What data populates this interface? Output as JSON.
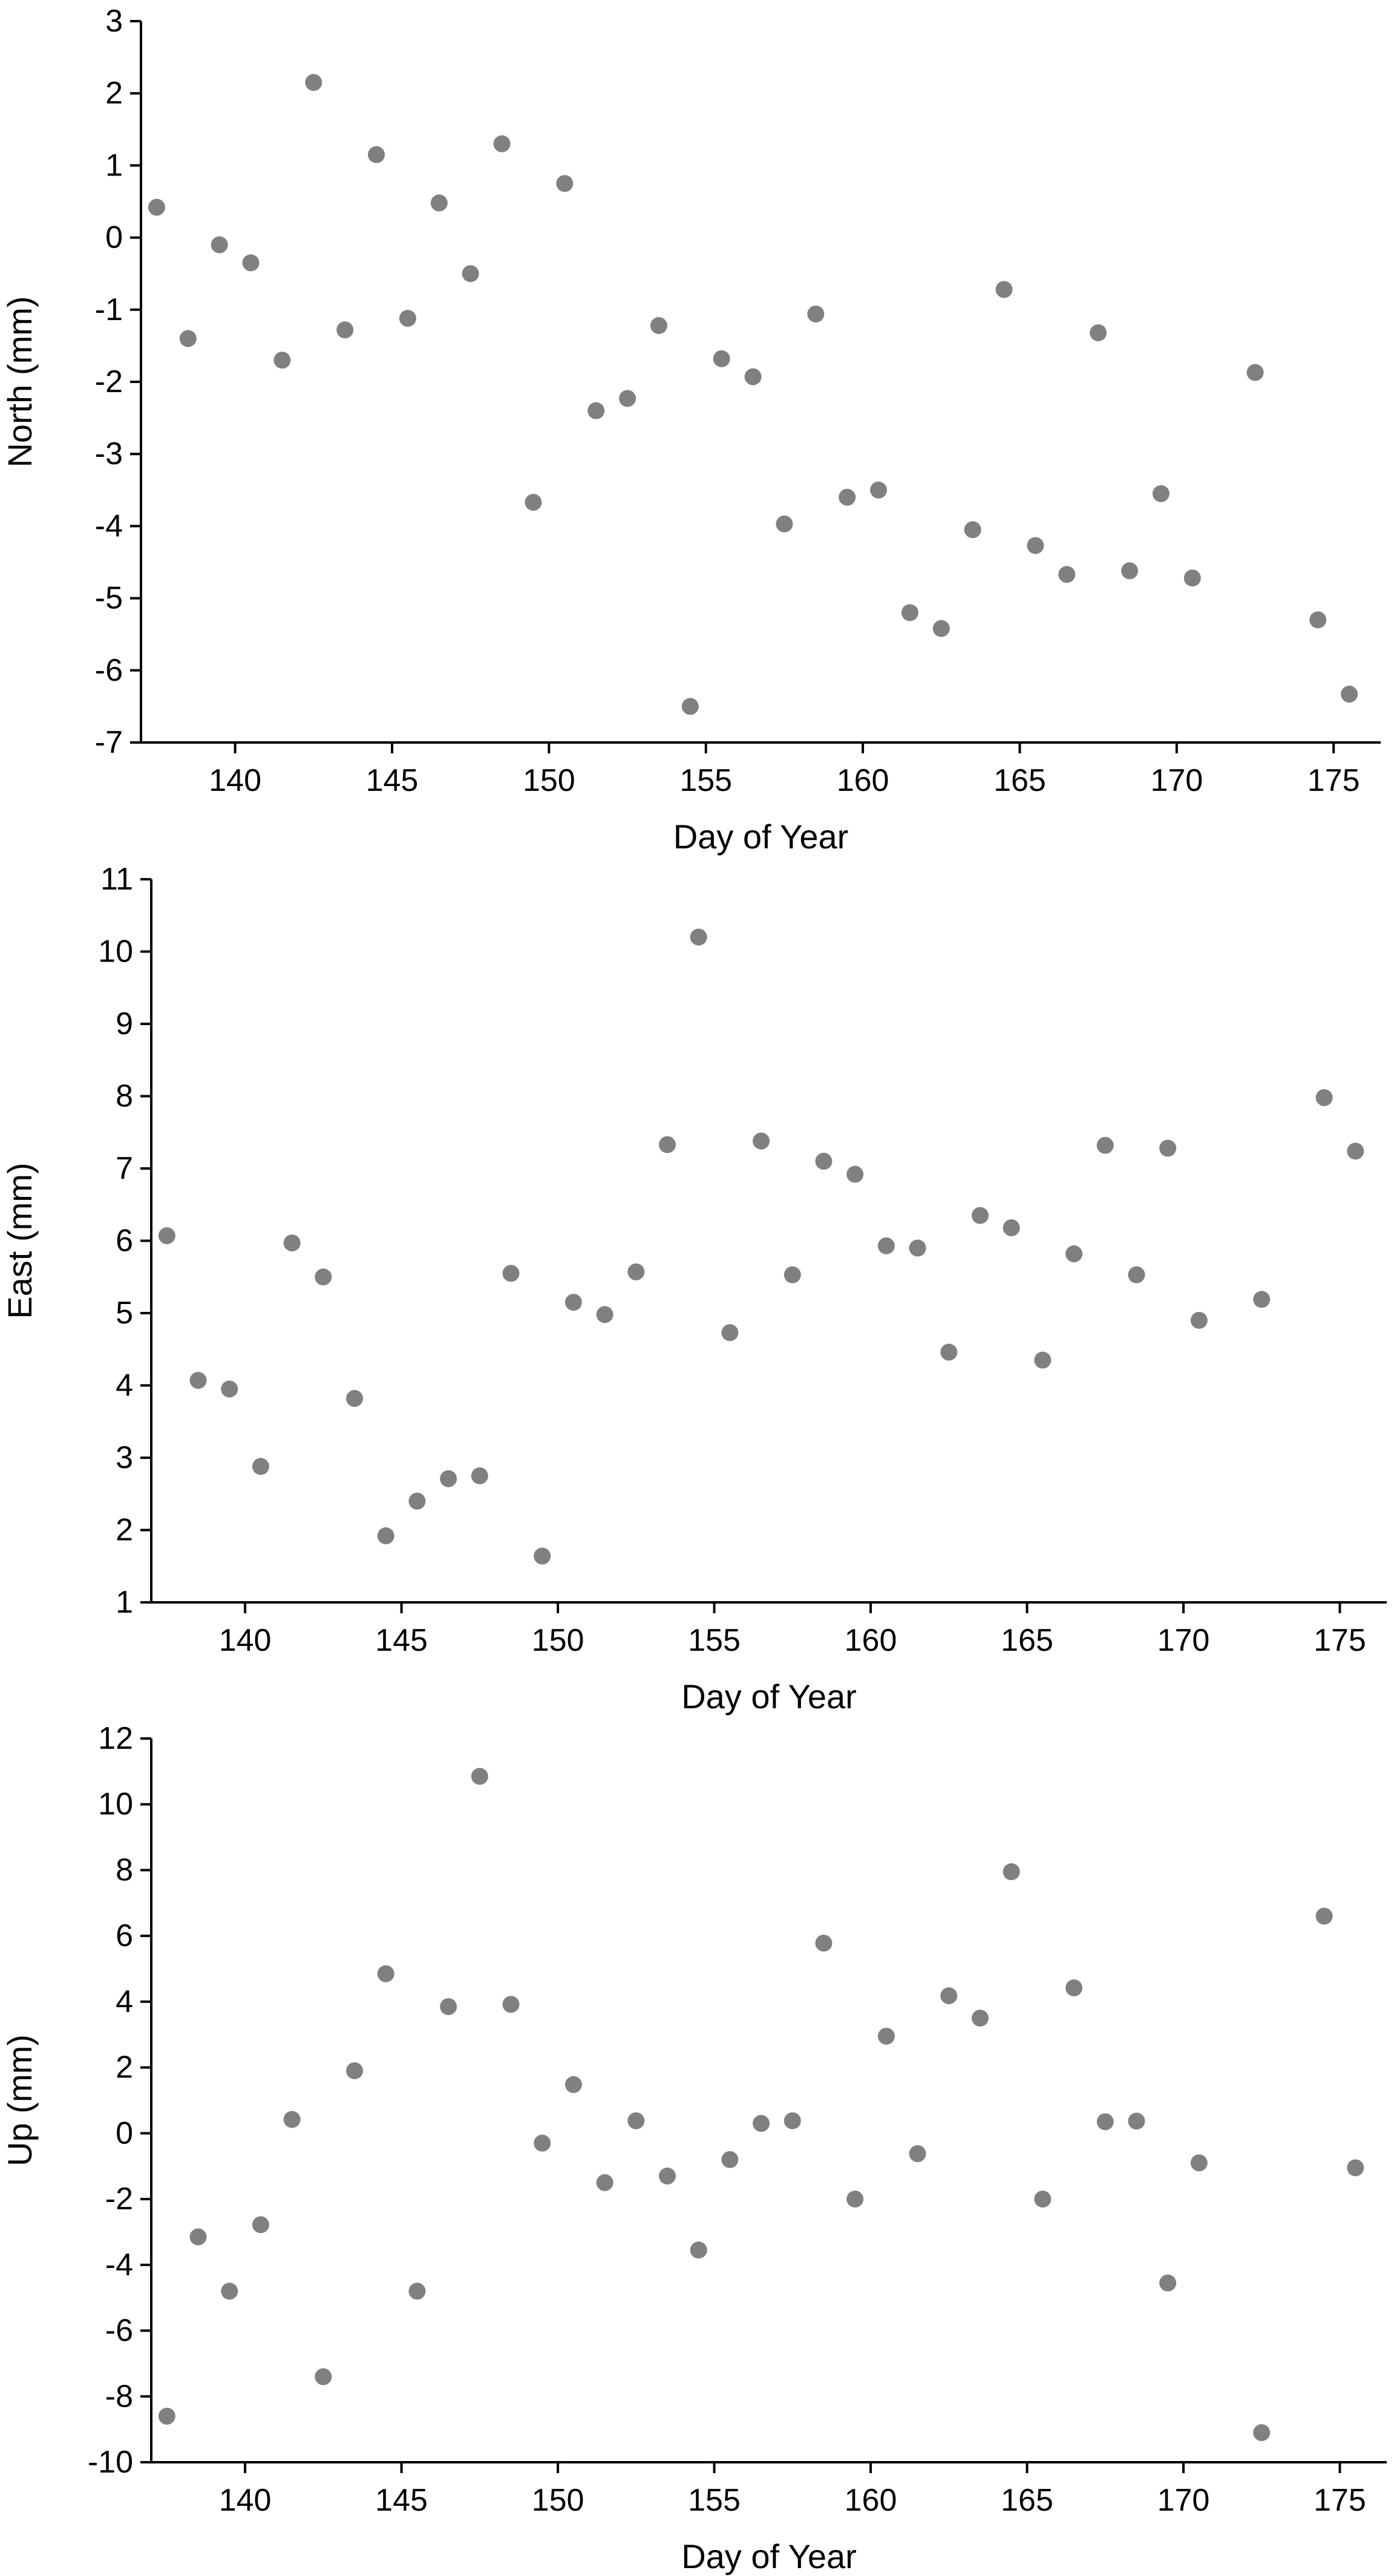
{
  "chart_data": [
    {
      "type": "scatter",
      "title": "",
      "xlabel": "Day of Year",
      "ylabel": "North (mm)",
      "xlim": [
        137,
        176.5
      ],
      "ylim": [
        -7,
        3
      ],
      "xticks": [
        140,
        145,
        150,
        155,
        160,
        165,
        170,
        175
      ],
      "yticks": [
        -7,
        -6,
        -5,
        -4,
        -3,
        -2,
        -1,
        0,
        1,
        2,
        3
      ],
      "marker_color": "#808080",
      "grid": false,
      "series": [
        {
          "x": [
            137.5,
            138.5,
            139.5,
            140.5,
            141.5,
            142.5,
            143.5,
            144.5,
            145.5,
            146.5,
            147.5,
            148.5,
            149.5,
            150.5,
            151.5,
            152.5,
            153.5,
            154.5,
            155.5,
            156.5,
            157.5,
            158.5,
            159.5,
            160.5,
            161.5,
            162.5,
            163.5,
            164.5,
            165.5,
            166.5,
            167.5,
            168.5,
            169.5,
            170.5,
            172.5,
            174.5,
            175.5
          ],
          "y": [
            0.42,
            -1.4,
            -0.1,
            -0.35,
            -1.7,
            2.15,
            -1.28,
            1.15,
            -1.12,
            0.48,
            -0.5,
            1.3,
            -3.67,
            0.75,
            -2.4,
            -2.23,
            -1.22,
            -6.5,
            -1.68,
            -1.93,
            -3.97,
            -1.06,
            -3.6,
            -3.5,
            -5.2,
            -5.42,
            -4.05,
            -0.72,
            -4.27,
            -4.67,
            -1.32,
            -4.62,
            -3.55,
            -4.72,
            -1.87,
            -5.3,
            -6.33
          ]
        }
      ]
    },
    {
      "type": "scatter",
      "title": "",
      "xlabel": "Day of Year",
      "ylabel": "East (mm)",
      "xlim": [
        137,
        176.5
      ],
      "ylim": [
        1,
        11
      ],
      "xticks": [
        140,
        145,
        150,
        155,
        160,
        165,
        170,
        175
      ],
      "yticks": [
        1,
        2,
        3,
        4,
        5,
        6,
        7,
        8,
        9,
        10,
        11
      ],
      "marker_color": "#808080",
      "grid": false,
      "series": [
        {
          "x": [
            137.5,
            138.5,
            139.5,
            140.5,
            141.5,
            142.5,
            143.5,
            144.5,
            145.5,
            146.5,
            147.5,
            148.5,
            149.5,
            150.5,
            151.5,
            152.5,
            153.5,
            154.5,
            155.5,
            156.5,
            157.5,
            158.5,
            159.5,
            160.5,
            161.5,
            162.5,
            163.5,
            164.5,
            165.5,
            166.5,
            167.5,
            168.5,
            169.5,
            170.5,
            172.5,
            174.5,
            175.5
          ],
          "y": [
            6.07,
            4.07,
            3.95,
            2.88,
            5.97,
            5.5,
            3.82,
            1.92,
            2.4,
            2.71,
            2.75,
            5.55,
            1.64,
            5.15,
            4.98,
            5.57,
            7.33,
            10.2,
            4.73,
            7.38,
            5.53,
            7.1,
            6.92,
            5.93,
            5.9,
            4.46,
            6.35,
            6.18,
            4.35,
            5.82,
            7.32,
            5.53,
            7.28,
            4.9,
            5.19,
            7.98,
            7.24
          ]
        }
      ]
    },
    {
      "type": "scatter",
      "title": "",
      "xlabel": "Day of Year",
      "ylabel": "Up (mm)",
      "xlim": [
        137,
        176.5
      ],
      "ylim": [
        -10,
        12
      ],
      "xticks": [
        140,
        145,
        150,
        155,
        160,
        165,
        170,
        175
      ],
      "yticks": [
        -10,
        -8,
        -6,
        -4,
        -2,
        0,
        2,
        4,
        6,
        8,
        10,
        12
      ],
      "marker_color": "#808080",
      "grid": false,
      "series": [
        {
          "x": [
            137.5,
            138.5,
            139.5,
            140.5,
            141.5,
            142.5,
            143.5,
            144.5,
            145.5,
            146.5,
            147.5,
            148.5,
            149.5,
            150.5,
            151.5,
            152.5,
            153.5,
            154.5,
            155.5,
            156.5,
            157.5,
            158.5,
            159.5,
            160.5,
            161.5,
            162.5,
            163.5,
            164.5,
            165.5,
            166.5,
            167.5,
            168.5,
            169.5,
            170.5,
            172.5,
            174.5,
            175.5
          ],
          "y": [
            -8.6,
            -3.15,
            -4.8,
            -2.78,
            0.42,
            -7.4,
            1.9,
            4.85,
            -4.8,
            3.85,
            10.85,
            3.92,
            -0.3,
            1.48,
            -1.5,
            0.38,
            -1.3,
            -3.55,
            -0.8,
            0.3,
            0.38,
            5.78,
            -2.0,
            2.95,
            -0.62,
            4.18,
            3.5,
            7.95,
            -2.0,
            4.42,
            0.35,
            0.37,
            -4.55,
            -0.9,
            -9.1,
            6.6,
            -1.05
          ]
        }
      ]
    }
  ]
}
